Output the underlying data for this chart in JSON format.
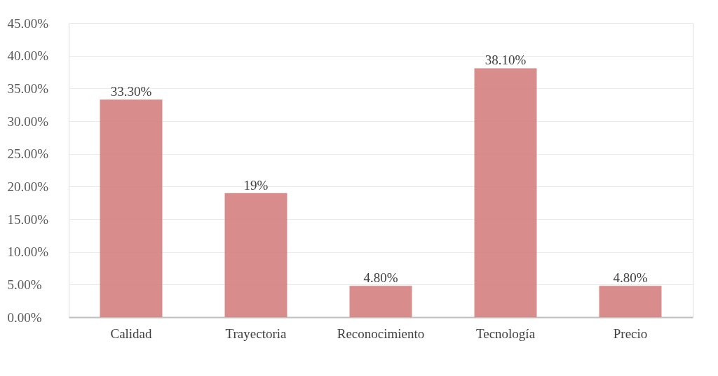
{
  "chart_data": {
    "type": "bar",
    "categories": [
      "Calidad",
      "Trayectoria",
      "Reconocimiento",
      "Tecnología",
      "Precio"
    ],
    "values": [
      33.3,
      19,
      4.8,
      38.1,
      4.8
    ],
    "value_labels": [
      "33.30%",
      "19%",
      "4.80%",
      "38.10%",
      "4.80%"
    ],
    "color": "#d47f7f",
    "ylim": [
      0,
      45
    ],
    "yticks": [
      {
        "value": 0,
        "label": "0.00%"
      },
      {
        "value": 5,
        "label": "5.00%"
      },
      {
        "value": 10,
        "label": "10.00%"
      },
      {
        "value": 15,
        "label": "15.00%"
      },
      {
        "value": 20,
        "label": "20.00%"
      },
      {
        "value": 25,
        "label": "25.00%"
      },
      {
        "value": 30,
        "label": "30.00%"
      },
      {
        "value": 35,
        "label": "35.00%"
      },
      {
        "value": 40,
        "label": "40.00%"
      },
      {
        "value": 45,
        "label": "45.00%"
      }
    ],
    "grid": "y"
  }
}
